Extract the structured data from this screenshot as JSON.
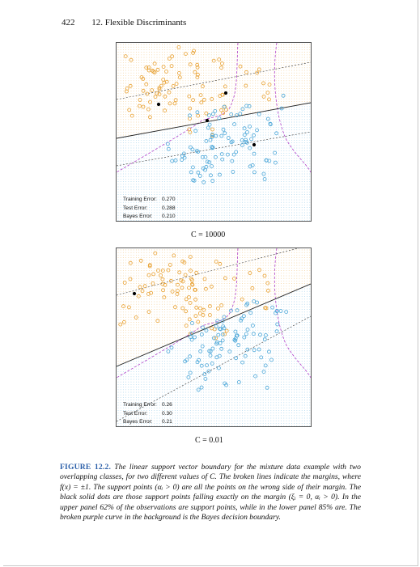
{
  "header": {
    "page_number": "422",
    "chapter_title": "12. Flexible Discriminants"
  },
  "panels": [
    {
      "training_label": "Training Error:",
      "training_value": "0.270",
      "test_label": "Test Error:",
      "test_value": "0.288",
      "bayes_label": "Bayes Error:",
      "bayes_value": "0.210",
      "caption": "C = 10000"
    },
    {
      "training_label": "Training Error:",
      "training_value": "0.26",
      "test_label": "Test Error:",
      "test_value": "0.30",
      "bayes_label": "Bayes Error:",
      "bayes_value": "0.21",
      "caption": "C = 0.01"
    }
  ],
  "figure": {
    "label": "FIGURE 12.2.",
    "text": "The linear support vector boundary for the mixture data example with two overlapping classes, for two different values of C. The broken lines indicate the margins, where f(x) = ±1. The support points (αᵢ > 0) are all the points on the wrong side of their margin. The black solid dots are those support points falling exactly on the margin (ξᵢ = 0, αᵢ > 0). In the upper panel 62% of the observations are support points, while in the lower panel 85% are. The broken purple curve in the background is the Bayes decision boundary."
  },
  "colors": {
    "orange": "#e8a030",
    "blue": "#4aa6d8",
    "purple": "#b040c8",
    "caption_blue": "#2a5ea8"
  }
}
